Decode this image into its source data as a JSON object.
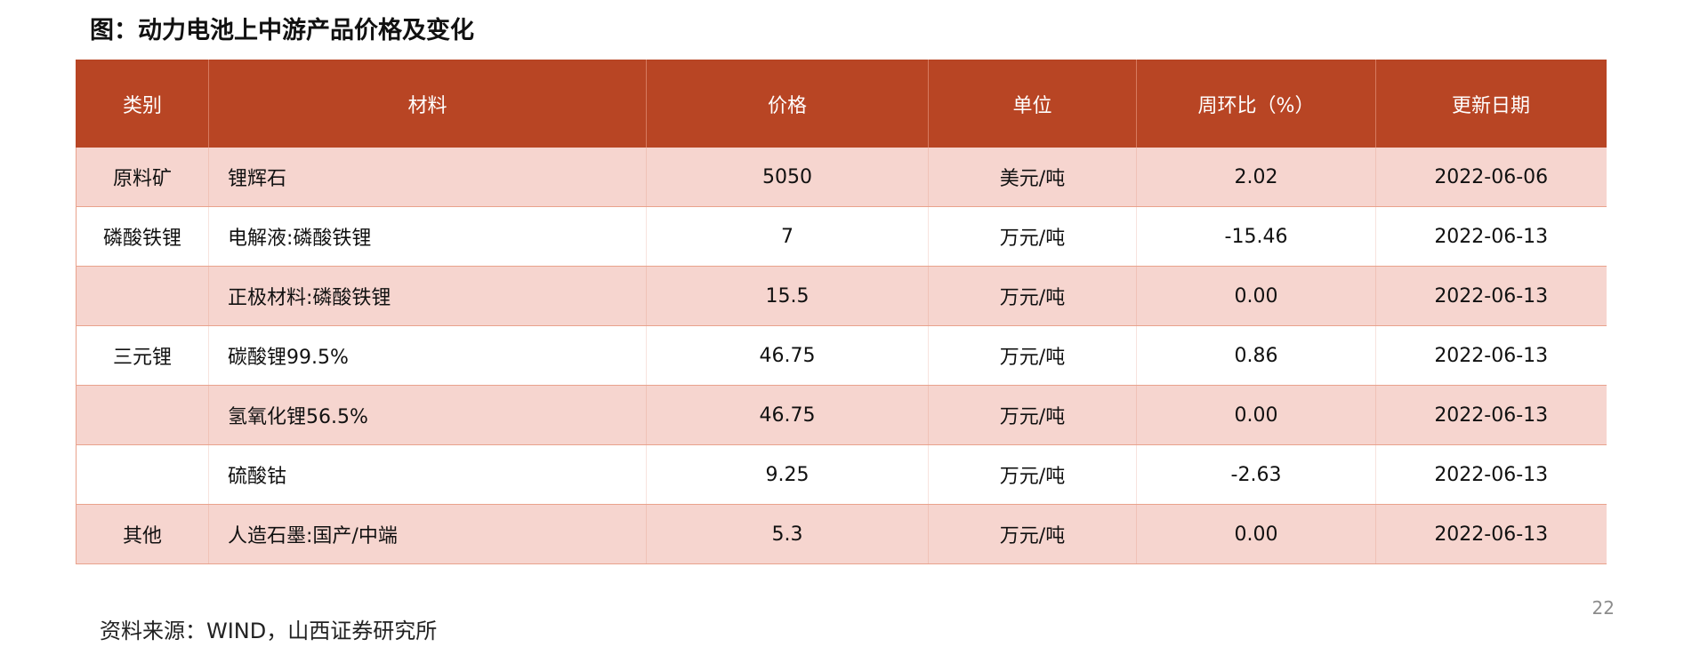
{
  "title": "图：动力电池上中游产品价格及变化",
  "table": {
    "headers": [
      "类别",
      "材料",
      "价格",
      "单位",
      "周环比（%）",
      "更新日期"
    ],
    "rows": [
      {
        "category": "原料矿",
        "material": "锂辉石",
        "price": "5050",
        "unit": "美元/吨",
        "wow": "2.02",
        "date": "2022-06-06"
      },
      {
        "category": "磷酸铁锂",
        "material": "电解液:磷酸铁锂",
        "price": "7",
        "unit": "万元/吨",
        "wow": "-15.46",
        "date": "2022-06-13"
      },
      {
        "category": "",
        "material": "正极材料:磷酸铁锂",
        "price": "15.5",
        "unit": "万元/吨",
        "wow": "0.00",
        "date": "2022-06-13"
      },
      {
        "category": "三元锂",
        "material": "碳酸锂99.5%",
        "price": "46.75",
        "unit": "万元/吨",
        "wow": "0.86",
        "date": "2022-06-13"
      },
      {
        "category": "",
        "material": "氢氧化锂56.5%",
        "price": "46.75",
        "unit": "万元/吨",
        "wow": "0.00",
        "date": "2022-06-13"
      },
      {
        "category": "",
        "material": "硫酸钴",
        "price": "9.25",
        "unit": "万元/吨",
        "wow": "-2.63",
        "date": "2022-06-13"
      },
      {
        "category": "其他",
        "material": "人造石墨:国产/中端",
        "price": "5.3",
        "unit": "万元/吨",
        "wow": "0.00",
        "date": "2022-06-13"
      }
    ]
  },
  "source": "资料来源：WIND，山西证券研究所",
  "page_number": "22",
  "colors": {
    "header_bg": "#b84524",
    "row_alt_bg": "#f6d5cf",
    "border": "#e9a28c"
  }
}
